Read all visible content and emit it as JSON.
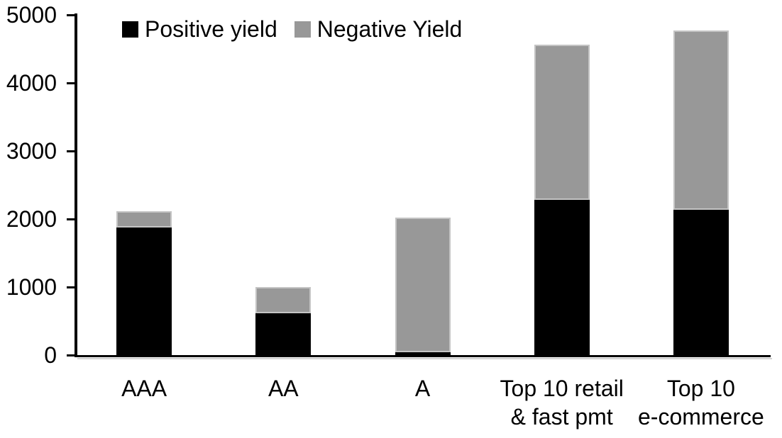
{
  "chart_data": {
    "type": "bar",
    "stacked": true,
    "title": "",
    "xlabel": "",
    "ylabel": "",
    "categories": [
      "AAA",
      "AA",
      "A",
      "Top 10 retail & fast pmt",
      "Top 10 e-commerce"
    ],
    "categories_lines": [
      [
        "AAA"
      ],
      [
        "AA"
      ],
      [
        "A"
      ],
      [
        "Top 10 retail",
        "& fast pmt"
      ],
      [
        "Top 10",
        "e-commerce"
      ]
    ],
    "series": [
      {
        "name": "Positive yield",
        "color": "#000000",
        "values": [
          1880,
          610,
          40,
          2280,
          2140
        ]
      },
      {
        "name": "Negative Yield",
        "color": "#989898",
        "values": [
          230,
          390,
          1980,
          2280,
          2630
        ]
      }
    ],
    "totals": [
      2110,
      1000,
      2020,
      4560,
      4770
    ],
    "ylim": [
      0,
      5000
    ],
    "yticks": [
      0,
      1000,
      2000,
      3000,
      4000,
      5000
    ],
    "legend_position": "top",
    "grid": false,
    "axis_color": "#000000"
  }
}
